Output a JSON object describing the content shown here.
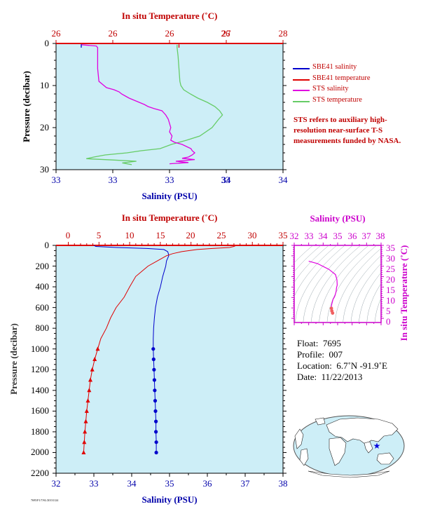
{
  "colors": {
    "salinity": "#0000cc",
    "temperature": "#e00000",
    "sts_salinity": "#e000e0",
    "sts_temperature": "#66cc66",
    "plot_bg": "#cdeef7",
    "ts_axis": "#cc00cc",
    "pressure_axis": "#000000"
  },
  "chart_data": [
    {
      "type": "line",
      "panel": "near-surface",
      "title": "",
      "x_top_label": "In situ Temperature (˚C)",
      "x_top_ticks": [
        "26",
        "26",
        "26",
        "26",
        "27",
        "28"
      ],
      "x_bottom_label": "Salinity (PSU)",
      "x_bottom_ticks": [
        "33",
        "33",
        "33",
        "33",
        "34",
        "34"
      ],
      "ylabel": "Pressure (decibar)",
      "ylim": [
        0,
        30
      ],
      "y_ticks": [
        "0",
        "10",
        "20",
        "30"
      ],
      "xlim_salinity": [
        32.8,
        34.6
      ],
      "xlim_temperature": [
        25.6,
        28.0
      ],
      "legend_position": "right",
      "grid": false,
      "series": [
        {
          "name": "SBE41 salinity",
          "axis": "salinity",
          "pressure": [
            0.2,
            1
          ],
          "values": [
            33.0,
            33.0
          ]
        },
        {
          "name": "SBE41 temperature",
          "axis": "temperature",
          "pressure": [
            0.2,
            1
          ],
          "values": [
            26.9,
            26.9
          ]
        },
        {
          "name": "STS salinity",
          "axis": "salinity",
          "pressure": [
            0.3,
            0.6,
            1,
            3,
            6,
            9,
            10.5,
            11,
            11.5,
            12,
            12.5,
            13,
            13.5,
            14,
            14.5,
            15,
            15.5,
            16,
            17,
            18,
            19,
            20,
            21,
            22,
            23,
            23.5,
            24,
            25,
            25.5,
            26,
            26.5,
            27,
            27.3,
            27.6,
            28,
            28.3,
            28.6
          ],
          "values": [
            33.0,
            33.12,
            33.13,
            33.13,
            33.13,
            33.14,
            33.2,
            33.26,
            33.3,
            33.32,
            33.35,
            33.38,
            33.42,
            33.46,
            33.5,
            33.53,
            33.58,
            33.64,
            33.67,
            33.69,
            33.7,
            33.71,
            33.7,
            33.72,
            33.71,
            33.74,
            33.8,
            33.87,
            33.88,
            33.9,
            33.88,
            33.85,
            33.8,
            33.9,
            33.75,
            33.85,
            33.7
          ]
        },
        {
          "name": "STS temperature",
          "axis": "temperature",
          "pressure": [
            0.3,
            1,
            3,
            6,
            9,
            10,
            11,
            12,
            13,
            14,
            15,
            16,
            17,
            18,
            20,
            22,
            23,
            24,
            25,
            25.5,
            26,
            26.5,
            27,
            27.4,
            27.7,
            28,
            28.4,
            28.8
          ],
          "values": [
            26.88,
            26.88,
            26.89,
            26.9,
            26.91,
            26.92,
            26.95,
            27.02,
            27.1,
            27.2,
            27.28,
            27.33,
            27.36,
            27.32,
            27.25,
            27.12,
            26.98,
            26.82,
            26.7,
            26.5,
            26.35,
            26.12,
            26.0,
            25.92,
            26.2,
            26.45,
            26.3,
            26.4
          ]
        }
      ]
    },
    {
      "type": "line",
      "panel": "full-depth",
      "title": "",
      "x_top_label": "In situ Temperature (˚C)",
      "x_top_ticks": [
        "0",
        "5",
        "10",
        "15",
        "20",
        "25",
        "30",
        "35"
      ],
      "x_bottom_label": "Salinity (PSU)",
      "x_bottom_ticks": [
        "32",
        "33",
        "34",
        "35",
        "36",
        "37",
        "38"
      ],
      "ylabel": "Pressure (decibar)",
      "ylim": [
        0,
        2200
      ],
      "y_ticks": [
        "0",
        "200",
        "400",
        "600",
        "800",
        "1000",
        "1200",
        "1400",
        "1600",
        "1800",
        "2000",
        "2200"
      ],
      "xlim_salinity": [
        32,
        38
      ],
      "xlim_temperature": [
        -2,
        35
      ],
      "grid": false,
      "series": [
        {
          "name": "SBE41 salinity",
          "axis": "salinity",
          "marker": "circle",
          "marker_from_pressure": 1000,
          "pressure": [
            0,
            10,
            20,
            30,
            40,
            60,
            80,
            100,
            150,
            200,
            300,
            400,
            500,
            600,
            700,
            800,
            900,
            1000,
            1100,
            1200,
            1300,
            1400,
            1500,
            1600,
            1700,
            1800,
            1900,
            2000
          ],
          "values": [
            33.0,
            33.05,
            33.6,
            34.4,
            34.85,
            34.95,
            34.97,
            34.98,
            34.92,
            34.9,
            34.82,
            34.76,
            34.68,
            34.63,
            34.6,
            34.58,
            34.57,
            34.57,
            34.58,
            34.59,
            34.6,
            34.61,
            34.62,
            34.63,
            34.64,
            34.64,
            34.65,
            34.65
          ]
        },
        {
          "name": "SBE41 temperature",
          "axis": "temperature",
          "marker": "triangle",
          "marker_from_pressure": 1000,
          "pressure": [
            0,
            10,
            20,
            30,
            40,
            60,
            80,
            100,
            150,
            200,
            300,
            400,
            500,
            600,
            700,
            800,
            900,
            1000,
            1100,
            1200,
            1300,
            1400,
            1500,
            1600,
            1700,
            1800,
            1900,
            2000
          ],
          "values": [
            27.4,
            27.0,
            26.3,
            23.5,
            21.0,
            18.5,
            17.0,
            16.0,
            14.5,
            13.0,
            11.0,
            10.0,
            9.1,
            7.8,
            6.9,
            6.2,
            5.3,
            4.8,
            4.3,
            3.9,
            3.6,
            3.4,
            3.2,
            3.0,
            2.85,
            2.7,
            2.6,
            2.5
          ]
        }
      ]
    },
    {
      "type": "scatter",
      "panel": "T-S diagram",
      "x_top_label": "Salinity (PSU)",
      "x_top_ticks": [
        "32",
        "33",
        "34",
        "35",
        "36",
        "37",
        "38"
      ],
      "ylabel": "In situ Temperature (˚C)",
      "y_ticks": [
        "0",
        "5",
        "10",
        "15",
        "20",
        "25",
        "30",
        "35"
      ],
      "xlim": [
        32,
        38
      ],
      "ylim": [
        -2,
        35
      ],
      "series": [
        {
          "name": "profile",
          "salinity": [
            33.0,
            33.6,
            34.4,
            34.85,
            34.95,
            34.97,
            34.92,
            34.9,
            34.82,
            34.76,
            34.68,
            34.63,
            34.6,
            34.58,
            34.57,
            34.6,
            34.65
          ],
          "temperature": [
            27.4,
            26.3,
            23.5,
            21.0,
            18.5,
            16.0,
            14.5,
            13.0,
            11.0,
            10.0,
            9.1,
            7.8,
            6.9,
            6.2,
            4.8,
            3.6,
            2.5
          ]
        }
      ]
    }
  ],
  "meta": {
    "float_label": "Float:",
    "float_value": "7695",
    "profile_label": "Profile:",
    "profile_value": "007",
    "location_label": "Location:",
    "location_value": "6.7˚N  -91.9˚E",
    "date_label": "Date:",
    "date_value": "11/22/2013"
  },
  "note": "STS refers to auxiliary high-resolution near-surface T-S measurements funded by NASA.",
  "map": {
    "float_marker": "star-icon"
  },
  "footer_code": "7695/F1/7/SL/20131124"
}
